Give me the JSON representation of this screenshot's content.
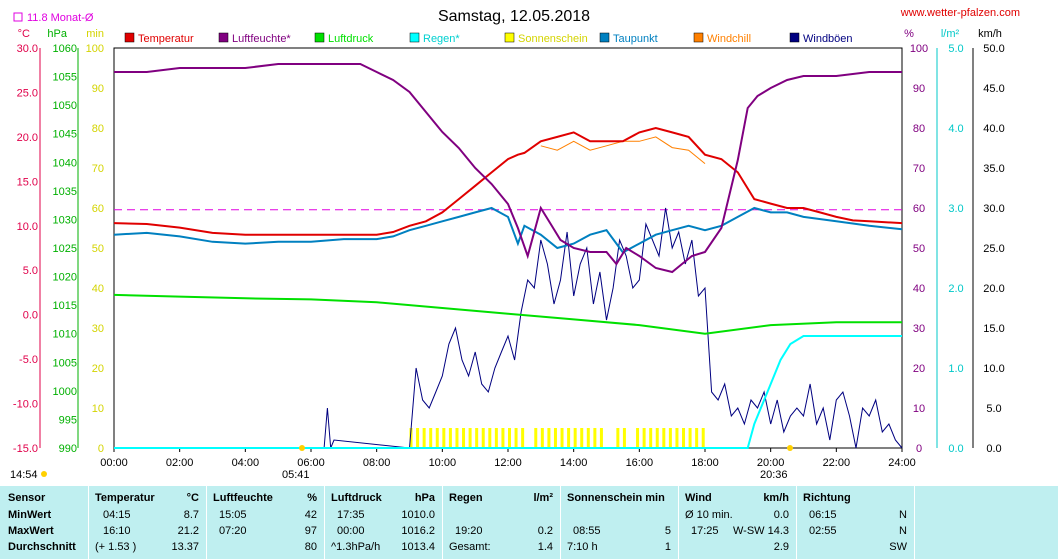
{
  "page": {
    "title": "Samstag, 12.05.2018",
    "site": "www.wetter-pfalzen.com",
    "month_avg_label": "11.8 Monat-Ø",
    "month_avg_value": 11.8,
    "sunrise": "05:41",
    "sunset": "20:36",
    "updated": "14:54"
  },
  "axes": {
    "left1": {
      "unit": "°C",
      "min": -15,
      "max": 30,
      "step": 5,
      "color": "#e0004a"
    },
    "left2": {
      "unit": "hPa",
      "min": 990,
      "max": 1060,
      "step": 5,
      "color": "#00b000"
    },
    "left3": {
      "unit": "min",
      "min": 0,
      "max": 100,
      "step": 10,
      "color": "#d4d400"
    },
    "right1": {
      "unit": "%",
      "min": 0,
      "max": 100,
      "step": 10,
      "color": "#800080"
    },
    "right2": {
      "unit": "l/m²",
      "min": 0,
      "max": 5,
      "step": 1,
      "color": "#00c8c8"
    },
    "right3": {
      "unit": "km/h",
      "min": 0,
      "max": 50,
      "step": 5,
      "color": "#000000"
    },
    "x_ticks": [
      "00:00",
      "02:00",
      "04:00",
      "06:00",
      "08:00",
      "10:00",
      "12:00",
      "14:00",
      "16:00",
      "18:00",
      "20:00",
      "22:00",
      "24:00"
    ]
  },
  "legend": [
    {
      "label": "Temperatur",
      "color": "#e00000"
    },
    {
      "label": "Luftfeuchte*",
      "color": "#800080"
    },
    {
      "label": "Luftdruck",
      "color": "#00e000"
    },
    {
      "label": "Regen*",
      "color": "#00ffff"
    },
    {
      "label": "Sonnenschein",
      "color": "#ffff00"
    },
    {
      "label": "Taupunkt",
      "color": "#0080c0"
    },
    {
      "label": "Windchill",
      "color": "#ff8000"
    },
    {
      "label": "Windböen",
      "color": "#000080"
    }
  ],
  "chart_data": {
    "type": "line",
    "title": "Samstag, 12.05.2018",
    "x_range_hours": [
      0,
      24
    ],
    "series": [
      {
        "name": "Temperatur",
        "axis": "left1",
        "color": "#e00000",
        "x": [
          0,
          1,
          2,
          3,
          4,
          5,
          6,
          7,
          8,
          8.5,
          9,
          9.5,
          10,
          10.5,
          11,
          11.5,
          12,
          12.3,
          12.5,
          13,
          13.5,
          14,
          14.5,
          15,
          15.5,
          16,
          16.5,
          17,
          17.5,
          18,
          18.5,
          19,
          19.5,
          20,
          20.5,
          21,
          21.5,
          22,
          22.5,
          23,
          24
        ],
        "y": [
          10.3,
          10.2,
          9.8,
          9.2,
          9.0,
          9.0,
          9.0,
          9.0,
          9.0,
          9.3,
          10,
          10.5,
          11.5,
          13,
          14.5,
          16,
          17.5,
          18,
          18.2,
          19.5,
          20,
          20.5,
          19.5,
          19.5,
          19.5,
          20.5,
          21,
          20.5,
          20,
          18,
          17.5,
          16,
          13,
          12.5,
          12,
          12,
          11.5,
          11,
          10.6,
          10.5,
          10.3
        ]
      },
      {
        "name": "Luftfeuchte*",
        "axis": "right1",
        "color": "#800080",
        "x": [
          0,
          1,
          2,
          3,
          4,
          5,
          6,
          7,
          7.5,
          8,
          8.5,
          9,
          9.5,
          10,
          10.5,
          11,
          11.5,
          12,
          12.3,
          12.6,
          13,
          13.3,
          13.6,
          14,
          14.5,
          15,
          15.3,
          15.6,
          16,
          16.5,
          17,
          17.3,
          17.6,
          18,
          18.5,
          19,
          19.3,
          19.6,
          20,
          20.5,
          21,
          22,
          23,
          24
        ],
        "y": [
          94,
          94,
          95,
          95,
          95,
          96,
          96,
          96,
          96,
          94,
          92,
          89,
          84,
          79,
          75,
          70,
          66,
          61,
          55,
          48,
          60,
          56,
          52,
          50,
          49,
          49,
          46,
          50,
          48,
          45,
          44,
          46,
          48,
          49,
          55,
          72,
          85,
          88,
          90,
          92,
          93,
          93,
          94,
          94
        ]
      },
      {
        "name": "Luftdruck",
        "axis": "left2",
        "color": "#00e000",
        "x": [
          0,
          2,
          4,
          6,
          8,
          10,
          12,
          14,
          16,
          18,
          20,
          22,
          24
        ],
        "y": [
          1016.8,
          1016.5,
          1016.2,
          1016.0,
          1015.5,
          1014.5,
          1013.5,
          1012.5,
          1011.5,
          1010.0,
          1011.5,
          1012.0,
          1012.0
        ]
      },
      {
        "name": "Regen*",
        "axis": "right2",
        "color": "#00ffff",
        "x": [
          0,
          19.3,
          19.5,
          20,
          20.3,
          20.6,
          21,
          21.5,
          22,
          23,
          24
        ],
        "y": [
          0,
          0,
          0.3,
          0.8,
          1.1,
          1.3,
          1.4,
          1.4,
          1.4,
          1.4,
          1.4
        ]
      },
      {
        "name": "Taupunkt",
        "axis": "left1",
        "color": "#0080c0",
        "x": [
          0,
          1,
          2,
          3,
          4,
          5,
          6,
          7,
          8,
          8.5,
          9,
          9.5,
          10,
          10.5,
          11,
          11.5,
          12,
          12.3,
          12.5,
          13,
          13.5,
          14,
          14.5,
          15,
          15.5,
          16,
          16.5,
          17,
          17.5,
          18,
          18.5,
          19,
          19.5,
          20,
          20.5,
          21,
          22,
          23,
          24
        ],
        "y": [
          9.0,
          9.2,
          8.8,
          8.2,
          8.0,
          8.2,
          8.2,
          8.5,
          8.5,
          8.8,
          9.5,
          10,
          10.5,
          11,
          11.5,
          12,
          11,
          8,
          10,
          9,
          7.5,
          8,
          9,
          9.5,
          7,
          8,
          9,
          9.5,
          10,
          9.5,
          10,
          11,
          12,
          11.5,
          11.5,
          11,
          10.5,
          10,
          9.6
        ]
      },
      {
        "name": "Windchill",
        "axis": "left1",
        "color": "#ff8000",
        "x": [
          13,
          13.5,
          14,
          14.5,
          15,
          15.5,
          16,
          16.5,
          17,
          17.5,
          18
        ],
        "y": [
          19,
          18.5,
          19.5,
          18.5,
          19,
          19.5,
          19.5,
          20,
          18.8,
          18.5,
          17
        ]
      },
      {
        "name": "Windböen",
        "axis": "right3",
        "color": "#000080",
        "x": [
          0,
          6.4,
          6.5,
          6.6,
          6.7,
          9.0,
          9.2,
          9.4,
          9.6,
          9.8,
          10,
          10.2,
          10.4,
          10.6,
          10.8,
          11,
          11.2,
          11.4,
          11.6,
          11.8,
          12,
          12.2,
          12.4,
          12.6,
          12.8,
          13,
          13.2,
          13.4,
          13.6,
          13.8,
          14,
          14.2,
          14.4,
          14.6,
          14.8,
          15,
          15.2,
          15.4,
          15.6,
          15.8,
          16,
          16.2,
          16.4,
          16.6,
          16.8,
          17,
          17.2,
          17.4,
          17.6,
          17.8,
          18,
          18.2,
          18.4,
          18.6,
          18.8,
          19,
          19.2,
          19.4,
          19.6,
          19.8,
          20,
          20.2,
          20.4,
          20.6,
          20.8,
          21,
          21.2,
          21.4,
          21.6,
          21.8,
          22,
          22.2,
          22.4,
          22.6,
          22.8,
          23,
          23.2,
          23.4,
          23.6,
          23.8,
          24
        ],
        "y": [
          0,
          0,
          5,
          0,
          1,
          0,
          10,
          6,
          5,
          7,
          9,
          13,
          15,
          11,
          9,
          12,
          8,
          7,
          10,
          12,
          14,
          11,
          17,
          21,
          20,
          26,
          23,
          18,
          21,
          27,
          19,
          23,
          25,
          18,
          22,
          16,
          20,
          26,
          24,
          20,
          21,
          28,
          26,
          24,
          30,
          25,
          27,
          23,
          26,
          19,
          20,
          7,
          6,
          8,
          4,
          5,
          3,
          6,
          5,
          7,
          3,
          6,
          2,
          4,
          5,
          4,
          8,
          3,
          5,
          1,
          6,
          7,
          4,
          0,
          5,
          4,
          6,
          2,
          3,
          1,
          0
        ]
      }
    ],
    "sunshine": {
      "axis": "left3",
      "x": [
        9.0,
        9.2,
        9.4,
        9.6,
        9.8,
        10,
        10.2,
        10.4,
        10.6,
        10.8,
        11,
        11.2,
        11.4,
        11.6,
        11.8,
        12,
        12.2,
        12.4,
        12.8,
        13,
        13.2,
        13.4,
        13.6,
        13.8,
        14.0,
        14.2,
        14.4,
        14.6,
        14.8,
        15.3,
        15.5,
        15.9,
        16.1,
        16.3,
        16.5,
        16.7,
        16.9,
        17.1,
        17.3,
        17.5,
        17.7,
        17.9
      ],
      "y": [
        5,
        5,
        5,
        5,
        5,
        5,
        5,
        5,
        5,
        5,
        5,
        5,
        5,
        5,
        5,
        5,
        5,
        5,
        5,
        5,
        5,
        5,
        5,
        5,
        5,
        5,
        5,
        5,
        5,
        5,
        5,
        5,
        5,
        5,
        5,
        5,
        5,
        5,
        5,
        5,
        5,
        5
      ]
    },
    "month_avg_line": {
      "axis": "left1",
      "value": 11.8,
      "color": "#e000e0"
    }
  },
  "table": {
    "rowlabels": {
      "head": "Sensor",
      "min": "MinWert",
      "max": "MaxWert",
      "avg": "Durchschnitt"
    },
    "temp": {
      "head": "Temperatur",
      "unit": "°C",
      "min_t": "04:15",
      "min_v": "8.7",
      "max_t": "16:10",
      "max_v": "21.2",
      "avg_t": "(+ 1.53 )",
      "avg_v": "13.37"
    },
    "hum": {
      "head": "Luftfeuchte",
      "unit": "%",
      "min_t": "15:05",
      "min_v": "42",
      "max_t": "07:20",
      "max_v": "97",
      "avg_v": "80"
    },
    "press": {
      "head": "Luftdruck",
      "unit": "hPa",
      "min_t": "17:35",
      "min_v": "1010.0",
      "max_t": "00:00",
      "max_v": "1016.2",
      "avg_t": "^1.3hPa/h",
      "avg_v": "1013.4"
    },
    "rain": {
      "head": "Regen",
      "unit": "l/m²",
      "max_t": "19:20",
      "max_v": "0.2",
      "avg_t": "Gesamt:",
      "avg_v": "1.4"
    },
    "sun": {
      "head": "Sonnenschein min",
      "max_t": "08:55",
      "max_v": "5",
      "avg_t": "7:10 h",
      "avg_v": "1"
    },
    "wind": {
      "head": "Wind",
      "unit": "km/h",
      "min_t": "Ø 10 min.",
      "min_v": "0.0",
      "max_t": "17:25",
      "max_dir": "W-SW",
      "max_v": "14.3",
      "avg_v": "2.9"
    },
    "dir": {
      "head": "Richtung",
      "min_t": "06:15",
      "min_v": "N",
      "max_t": "02:55",
      "max_v": "N",
      "avg_v": "SW"
    }
  }
}
